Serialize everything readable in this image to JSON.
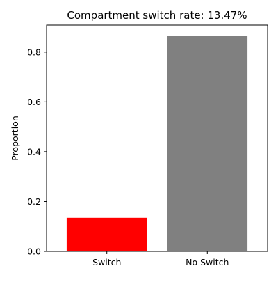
{
  "chart_data": {
    "type": "bar",
    "title": "Compartment switch rate: 13.47%",
    "xlabel": "",
    "ylabel": "Proportion",
    "categories": [
      "Switch",
      "No Switch"
    ],
    "values": [
      0.1347,
      0.8653
    ],
    "colors": [
      "#ff0000",
      "#808080"
    ],
    "ylim": [
      0,
      0.9085
    ],
    "yticks": [
      0.0,
      0.2,
      0.4,
      0.6,
      0.8
    ],
    "ytick_labels": [
      "0.0",
      "0.2",
      "0.4",
      "0.6",
      "0.8"
    ],
    "grid": false,
    "legend": "none"
  }
}
